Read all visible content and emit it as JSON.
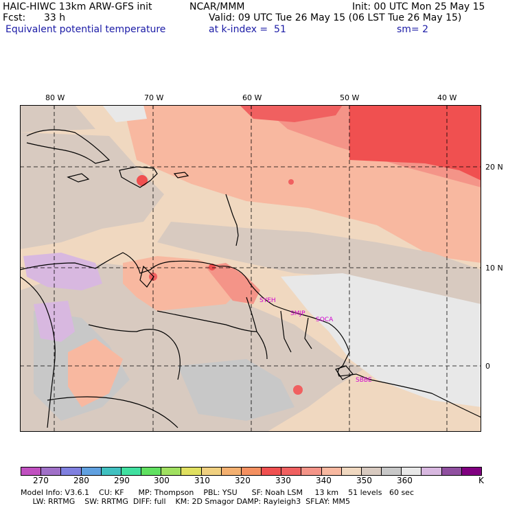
{
  "header": {
    "model_title": "HAIC-HIWC 13km ARW-GFS init",
    "org": "NCAR/MMM",
    "init": "Init: 00 UTC Mon 25 May 15",
    "fcst_label": "Fcst:",
    "fcst_value": "33 h",
    "valid": "Valid: 09 UTC Tue 26 May 15 (06 LST Tue 26 May 15)",
    "field": "Equivalent potential temperature",
    "level": "at k-index =  51",
    "smooth": "sm= 2"
  },
  "axes": {
    "lon_labels": [
      "80 W",
      "70 W",
      "60 W",
      "50 W",
      "40 W"
    ],
    "lat_labels": [
      "20 N",
      "10 N",
      "0"
    ]
  },
  "stations": [
    "SYEH",
    "SMJP",
    "SOCA",
    "SBBE"
  ],
  "colorbar": {
    "colors": [
      "#c050c0",
      "#a070c8",
      "#8080e0",
      "#60a0e0",
      "#40c0c0",
      "#40e0a0",
      "#60e060",
      "#a0e060",
      "#e0e060",
      "#f0d080",
      "#f4b070",
      "#f49060",
      "#f05050",
      "#f06060",
      "#f49488",
      "#f8b8a0",
      "#f0d8c0",
      "#d8cac0",
      "#c8c8c8",
      "#e8e8e8",
      "#d8b8e0",
      "#9050a0",
      "#800080"
    ],
    "labels": [
      "270",
      "280",
      "290",
      "300",
      "310",
      "320",
      "330",
      "340",
      "350",
      "360"
    ],
    "unit": "K"
  },
  "model_info": {
    "line1": "Model Info: V3.6.1    CU: KF      MP: Thompson    PBL: YSU      SF: Noah LSM     13 km    51 levels   60 sec",
    "line2": "     LW: RRTMG    SW: RRTMG  DIFF: full    KM: 2D Smagor DAMP: Rayleigh3  SFLAY: MM5"
  }
}
